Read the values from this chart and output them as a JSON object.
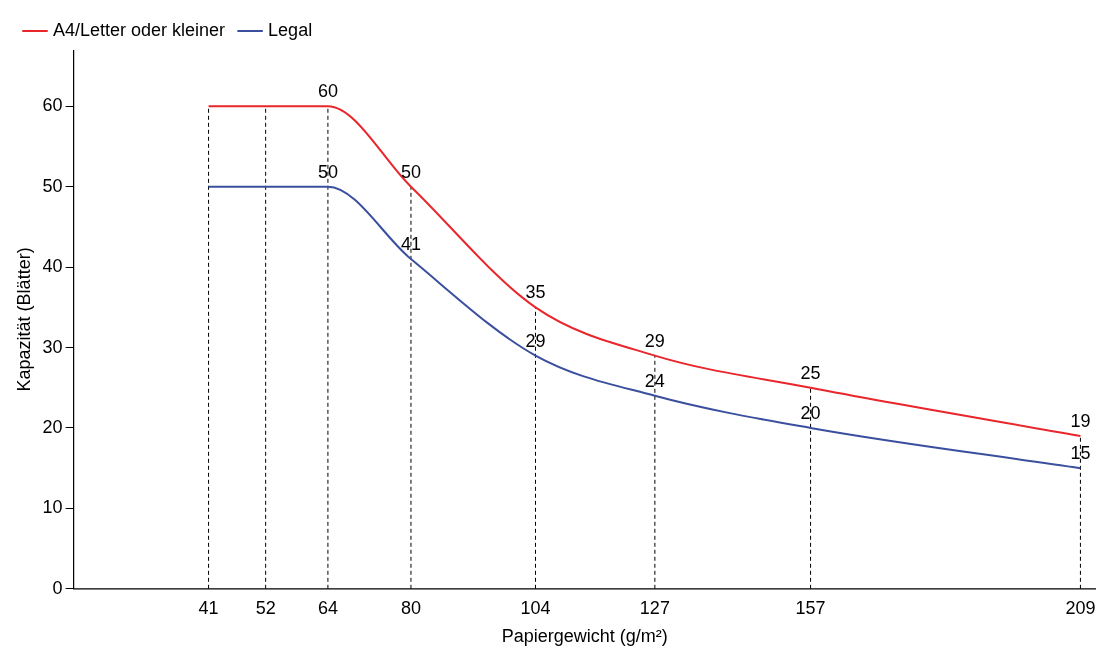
{
  "chart_data": {
    "type": "line",
    "xlabel": "Papiergewicht (g/m²)",
    "ylabel": "Kapazität (Blätter)",
    "x": [
      41,
      52,
      64,
      80,
      104,
      127,
      157,
      209
    ],
    "series": [
      {
        "name": "A4/Letter oder kleiner",
        "color": "#e8262b",
        "values": [
          60,
          60,
          60,
          50,
          35,
          29,
          25,
          19
        ],
        "value_labels": [
          null,
          null,
          "60",
          "50",
          "35",
          "29",
          "25",
          "19"
        ]
      },
      {
        "name": "Legal",
        "color": "#3a4f9e",
        "values": [
          50,
          50,
          50,
          41,
          29,
          24,
          20,
          15
        ],
        "value_labels": [
          null,
          null,
          "50",
          "41",
          "29",
          "24",
          "20",
          "15"
        ]
      }
    ],
    "xlim": [
      15,
      212
    ],
    "xticks": [
      41,
      52,
      64,
      80,
      104,
      127,
      157,
      209
    ],
    "ylim": [
      0,
      67
    ],
    "yticks": [
      0,
      10,
      20,
      30,
      40,
      50,
      60
    ],
    "ref_lines": [
      {
        "axis": "x",
        "value": 41,
        "line_style": "dashed",
        "color": "#000000"
      },
      {
        "axis": "x",
        "value": 52,
        "line_style": "dashed",
        "color": "#000000"
      },
      {
        "axis": "x",
        "value": 64,
        "line_style": "dashed",
        "color": "#000000"
      },
      {
        "axis": "x",
        "value": 80,
        "line_style": "dashed",
        "color": "#000000"
      },
      {
        "axis": "x",
        "value": 104,
        "line_style": "dashed",
        "color": "#000000"
      },
      {
        "axis": "x",
        "value": 127,
        "line_style": "dashed",
        "color": "#000000"
      },
      {
        "axis": "x",
        "value": 157,
        "line_style": "dashed",
        "color": "#000000"
      },
      {
        "axis": "x",
        "value": 209,
        "line_style": "dashed",
        "color": "#000000"
      }
    ],
    "legend": "top",
    "grid": false,
    "marker": "none",
    "line_style": "solid"
  }
}
